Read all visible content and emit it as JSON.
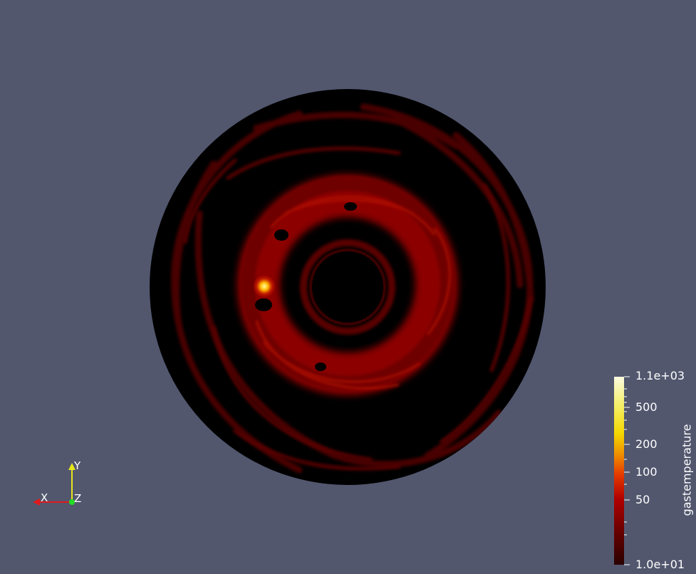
{
  "render": {
    "background": "#52576e",
    "object": "disk-temperature-slice"
  },
  "colorbar": {
    "title": "gastemperature",
    "scale": "log",
    "range": [
      10,
      1100
    ],
    "labels": [
      "1.1e+03",
      "500",
      "200",
      "100",
      "50",
      "1.0e+01"
    ],
    "colormap": [
      "#2a0000",
      "#6a0000",
      "#b00000",
      "#e63a00",
      "#f08a00",
      "#f5d800",
      "#f4f06a",
      "#fbf9e0"
    ]
  },
  "axes": {
    "x_label": "X",
    "y_label": "Y",
    "z_label": "Z",
    "x_color": "#e0191b",
    "y_color": "#e6e61a",
    "z_color": "#22dd22"
  }
}
